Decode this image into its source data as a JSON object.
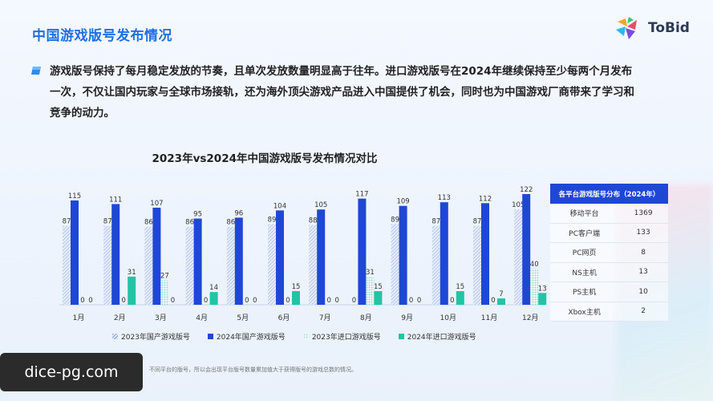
{
  "page": {
    "title": "中国游戏版号发布情况",
    "logo_text": "ToBid",
    "summary": "游戏版号保持了每月稳定发放的节奏，且单次发放数量明显高于往年。进口游戏版号在2024年继续保持至少每两个月发布一次，不仅让国内玩家与全球市场接轨，还为海外顶尖游戏产品进入中国提供了机会，同时也为中国游戏厂商带来了学习和竞争的动力。",
    "footnote": "不同平台的版号，所以会出现平台版号数量累加值大于获得版号的游戏总数的情况。",
    "watermark": "dice-pg.com"
  },
  "colors": {
    "title_blue": "#1f6fe6",
    "domestic_2024": "#1f47d6",
    "domestic_2023": "#9fb4e6",
    "import_2023": "#8ed8d2",
    "import_2024": "#22c4a6"
  },
  "chart_data": {
    "type": "bar",
    "title": "2023年vs2024年中国游戏版号发布情况对比",
    "categories": [
      "1月",
      "2月",
      "3月",
      "4月",
      "5月",
      "6月",
      "7月",
      "8月",
      "9月",
      "10月",
      "11月",
      "12月"
    ],
    "series": [
      {
        "name": "2023年国产游戏版号",
        "values": [
          87,
          87,
          86,
          86,
          86,
          89,
          88,
          0,
          89,
          87,
          87,
          105
        ]
      },
      {
        "name": "2024年国产游戏版号",
        "values": [
          115,
          111,
          107,
          95,
          96,
          104,
          105,
          117,
          109,
          113,
          112,
          122
        ]
      },
      {
        "name": "2023年进口游戏版号",
        "values": [
          0,
          0,
          27,
          0,
          0,
          0,
          0,
          31,
          0,
          0,
          0,
          40
        ]
      },
      {
        "name": "2024年进口游戏版号",
        "values": [
          0,
          31,
          0,
          14,
          0,
          15,
          0,
          15,
          0,
          15,
          7,
          13
        ]
      }
    ],
    "ylim": [
      0,
      130
    ],
    "legend_position": "bottom",
    "grid": false
  },
  "side_table": {
    "header": "各平台游戏版号分布（2024年）",
    "rows": [
      {
        "name": "移动平台",
        "value": "1369"
      },
      {
        "name": "PC客户端",
        "value": "133"
      },
      {
        "name": "PC网页",
        "value": "8"
      },
      {
        "name": "NS主机",
        "value": "13"
      },
      {
        "name": "PS主机",
        "value": "10"
      },
      {
        "name": "Xbox主机",
        "value": "2"
      }
    ]
  }
}
